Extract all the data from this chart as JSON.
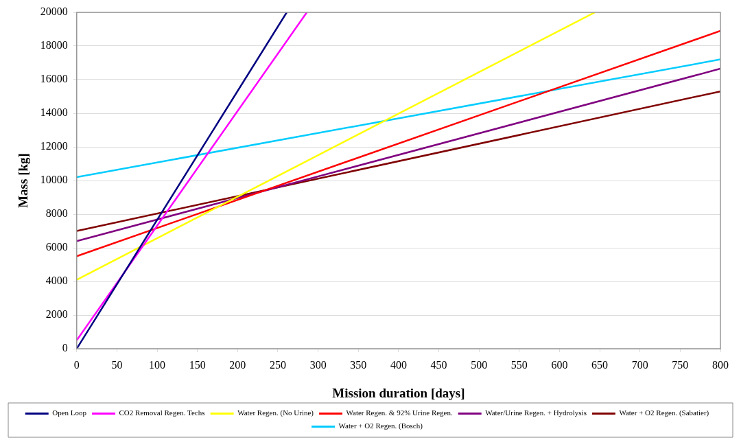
{
  "chart_data": {
    "type": "line",
    "xlabel": "Mission duration [days]",
    "ylabel": "Mass [kg]",
    "xlim": [
      0,
      800
    ],
    "xticks": [
      0,
      50,
      100,
      150,
      200,
      250,
      300,
      350,
      400,
      450,
      500,
      550,
      600,
      650,
      700,
      750,
      800
    ],
    "ylim": [
      0,
      20000
    ],
    "yticks": [
      0,
      2000,
      4000,
      6000,
      8000,
      10000,
      12000,
      14000,
      16000,
      18000,
      20000
    ],
    "grid": "y",
    "legend": "bottom",
    "marker": "none",
    "line_style": "solid",
    "series": [
      {
        "name": "Open Loop",
        "color": "#000080",
        "x": [
          0,
          261
        ],
        "values": [
          0,
          20000
        ]
      },
      {
        "name": "CO2 Removal Regen. Techs",
        "color": "#ff00ff",
        "x": [
          0,
          286
        ],
        "values": [
          500,
          20000
        ]
      },
      {
        "name": "Water Regen. (No Urine)",
        "color": "#ffff00",
        "x": [
          0,
          644
        ],
        "values": [
          4100,
          20000
        ]
      },
      {
        "name": "Water Regen. & 92% Urine Regen.",
        "color": "#ff0000",
        "x": [
          0,
          800
        ],
        "values": [
          5500,
          18900
        ]
      },
      {
        "name": "Water/Urine Regen. + Hydrolysis",
        "color": "#800080",
        "x": [
          0,
          800
        ],
        "values": [
          6400,
          16650
        ]
      },
      {
        "name": "Water + O2 Regen. (Sabatier)",
        "color": "#800000",
        "x": [
          0,
          800
        ],
        "values": [
          7000,
          15300
        ]
      },
      {
        "name": "Water + O2 Regen. (Bosch)",
        "color": "#00ccff",
        "x": [
          0,
          800
        ],
        "values": [
          10200,
          17200
        ]
      }
    ]
  }
}
